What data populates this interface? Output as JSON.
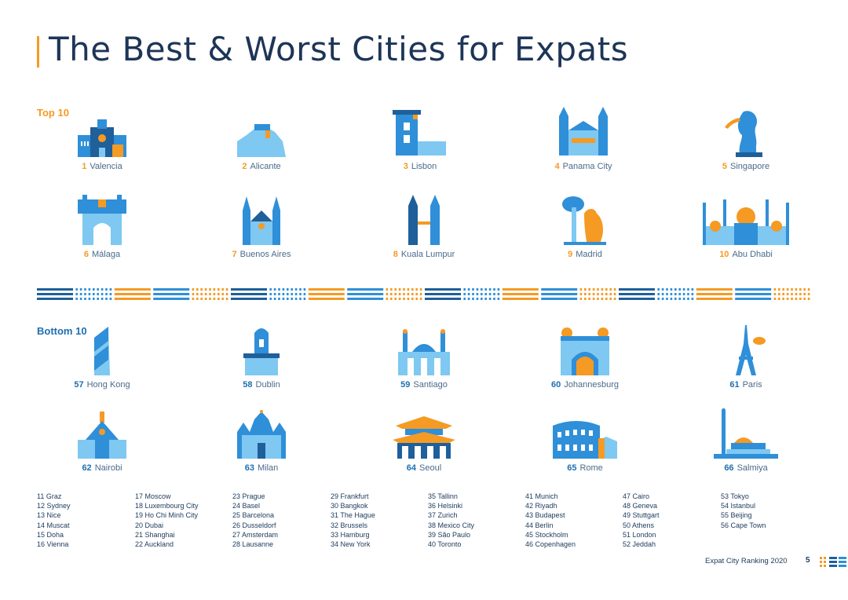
{
  "title": "The Best & Worst Cities for Expats",
  "top_label": "Top 10",
  "bottom_label": "Bottom 10",
  "top10": [
    {
      "rank": "1",
      "name": "Valencia",
      "icon": "cathedral-icon"
    },
    {
      "rank": "2",
      "name": "Alicante",
      "icon": "castle-hill-icon"
    },
    {
      "rank": "3",
      "name": "Lisbon",
      "icon": "belem-tower-icon"
    },
    {
      "rank": "4",
      "name": "Panama City",
      "icon": "twin-tower-church-icon"
    },
    {
      "rank": "5",
      "name": "Singapore",
      "icon": "merlion-icon"
    },
    {
      "rank": "6",
      "name": "Málaga",
      "icon": "fortress-icon"
    },
    {
      "rank": "7",
      "name": "Buenos Aires",
      "icon": "gothic-church-icon"
    },
    {
      "rank": "8",
      "name": "Kuala Lumpur",
      "icon": "petronas-towers-icon"
    },
    {
      "rank": "9",
      "name": "Madrid",
      "icon": "bear-tree-icon"
    },
    {
      "rank": "10",
      "name": "Abu Dhabi",
      "icon": "grand-mosque-icon"
    }
  ],
  "bottom10": [
    {
      "rank": "57",
      "name": "Hong Kong",
      "icon": "skyscraper-icon"
    },
    {
      "rank": "58",
      "name": "Dublin",
      "icon": "clock-tower-icon"
    },
    {
      "rank": "59",
      "name": "Santiago",
      "icon": "domed-building-icon"
    },
    {
      "rank": "60",
      "name": "Johannesburg",
      "icon": "arched-building-icon"
    },
    {
      "rank": "61",
      "name": "Paris",
      "icon": "eiffel-tower-icon"
    },
    {
      "rank": "62",
      "name": "Nairobi",
      "icon": "conference-center-icon"
    },
    {
      "rank": "63",
      "name": "Milan",
      "icon": "milan-cathedral-icon"
    },
    {
      "rank": "64",
      "name": "Seoul",
      "icon": "pagoda-gate-icon"
    },
    {
      "rank": "65",
      "name": "Rome",
      "icon": "colosseum-icon"
    },
    {
      "rank": "66",
      "name": "Salmiya",
      "icon": "tower-dome-icon"
    }
  ],
  "list_columns": [
    [
      "11  Graz",
      "12  Sydney",
      "13  Nice",
      "14  Muscat",
      "15  Doha",
      "16  Vienna"
    ],
    [
      "17  Moscow",
      "18  Luxembourg City",
      "19  Ho Chi Minh City",
      "20  Dubai",
      "21  Shanghai",
      "22  Auckland"
    ],
    [
      "23  Prague",
      "24  Basel",
      "25  Barcelona",
      "26  Dusseldorf",
      "27  Amsterdam",
      "28  Lausanne"
    ],
    [
      "29  Frankfurt",
      "30  Bangkok",
      "31  The Hague",
      "32  Brussels",
      "33  Hamburg",
      "34  New York"
    ],
    [
      "35  Tallinn",
      "36  Helsinki",
      "37  Zurich",
      "38  Mexico City",
      "39  São Paulo",
      "40  Toronto"
    ],
    [
      "41  Munich",
      "42  Riyadh",
      "43  Budapest",
      "44  Berlin",
      "45  Stockholm",
      "46  Copenhagen"
    ],
    [
      "47  Cairo",
      "48  Geneva",
      "49  Stuttgart",
      "50  Athens",
      "51  London",
      "52  Jeddah"
    ],
    [
      "53  Tokyo",
      "54  Istanbul",
      "55  Beijing",
      "56  Cape Town"
    ]
  ],
  "footer": {
    "text": "Expat City Ranking 2020",
    "page": "5",
    "logo": "internations-logo-icon"
  },
  "colors": {
    "orange": "#f59a23",
    "blue": "#2f8fd8",
    "light_blue": "#7ec8f2",
    "dark_blue": "#1f5f9a",
    "navy": "#1b3a5c"
  }
}
